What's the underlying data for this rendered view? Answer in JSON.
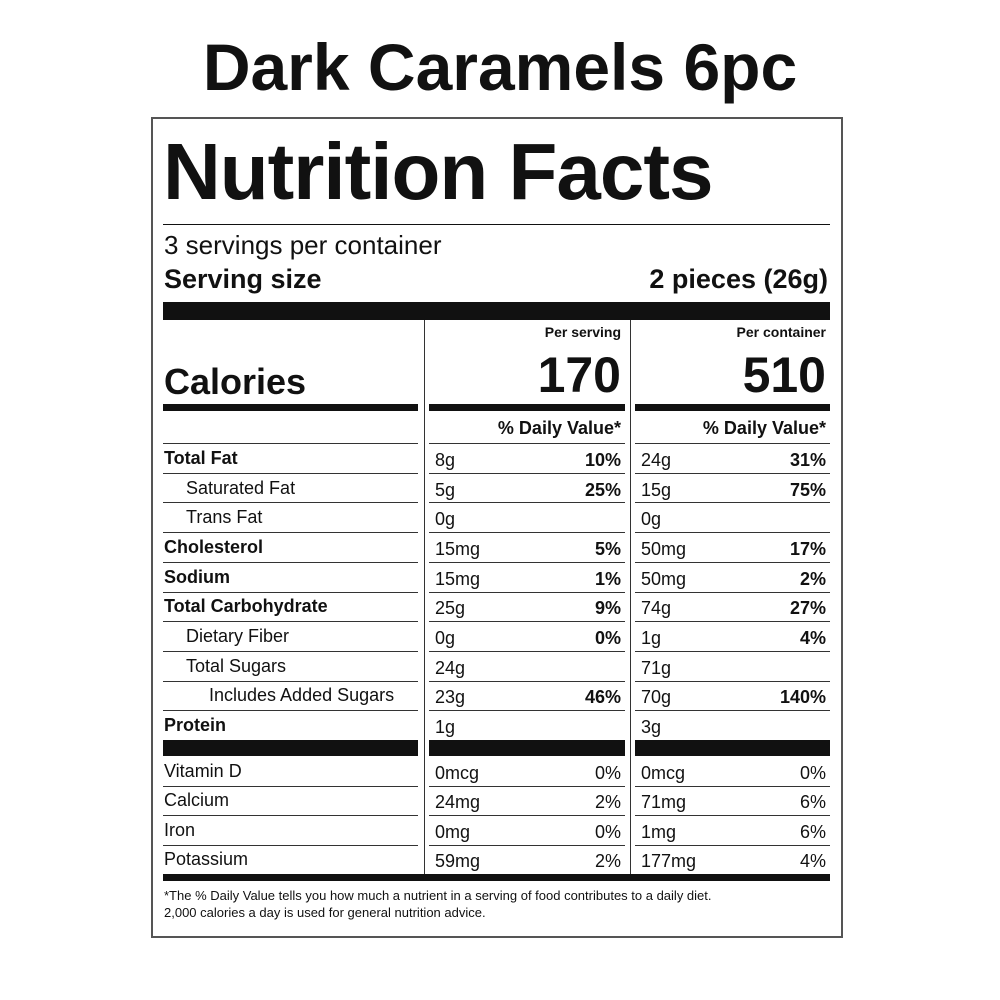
{
  "title": "Dark Caramels 6pc",
  "label": {
    "heading": "Nutrition Facts",
    "servings": "3 servings per container",
    "serving_size_label": "Serving size",
    "serving_size": "2 pieces (26g)",
    "calories_label": "Calories",
    "columns": [
      {
        "header": "Per serving",
        "calories": 170,
        "dv_header": "% Daily Value*"
      },
      {
        "header": "Per container",
        "calories": 510,
        "dv_header": "% Daily Value*"
      }
    ],
    "nutrients": [
      {
        "name": "Total Fat",
        "bold": true,
        "indent": 0,
        "values": [
          {
            "amount": "8g",
            "dv": "10%"
          },
          {
            "amount": "24g",
            "dv": "31%"
          }
        ]
      },
      {
        "name": "Saturated Fat",
        "bold": false,
        "indent": 1,
        "values": [
          {
            "amount": "5g",
            "dv": "25%"
          },
          {
            "amount": "15g",
            "dv": "75%"
          }
        ]
      },
      {
        "name": "Trans Fat",
        "bold": false,
        "indent": 1,
        "values": [
          {
            "amount": "0g"
          },
          {
            "amount": "0g"
          }
        ]
      },
      {
        "name": "Cholesterol",
        "bold": true,
        "indent": 0,
        "values": [
          {
            "amount": "15mg",
            "dv": "5%"
          },
          {
            "amount": "50mg",
            "dv": "17%"
          }
        ]
      },
      {
        "name": "Sodium",
        "bold": true,
        "indent": 0,
        "values": [
          {
            "amount": "15mg",
            "dv": "1%"
          },
          {
            "amount": "50mg",
            "dv": "2%"
          }
        ]
      },
      {
        "name": "Total Carbohydrate",
        "bold": true,
        "indent": 0,
        "values": [
          {
            "amount": "25g",
            "dv": "9%"
          },
          {
            "amount": "74g",
            "dv": "27%"
          }
        ]
      },
      {
        "name": "Dietary Fiber",
        "bold": false,
        "indent": 1,
        "values": [
          {
            "amount": "0g",
            "dv": "0%"
          },
          {
            "amount": "1g",
            "dv": "4%"
          }
        ]
      },
      {
        "name": "Total Sugars",
        "bold": false,
        "indent": 1,
        "values": [
          {
            "amount": "24g"
          },
          {
            "amount": "71g"
          }
        ]
      },
      {
        "name": "Includes Added Sugars",
        "bold": false,
        "indent": 2,
        "values": [
          {
            "amount": "23g",
            "dv": "46%"
          },
          {
            "amount": "70g",
            "dv": "140%"
          }
        ]
      },
      {
        "name": "Protein",
        "bold": true,
        "indent": 0,
        "values": [
          {
            "amount": "1g"
          },
          {
            "amount": "3g"
          }
        ]
      }
    ],
    "vitamins": [
      {
        "name": "Vitamin D",
        "values": [
          {
            "amount": "0mcg",
            "dv": "0%"
          },
          {
            "amount": "0mcg",
            "dv": "0%"
          }
        ]
      },
      {
        "name": "Calcium",
        "values": [
          {
            "amount": "24mg",
            "dv": "2%"
          },
          {
            "amount": "71mg",
            "dv": "6%"
          }
        ]
      },
      {
        "name": "Iron",
        "values": [
          {
            "amount": "0mg",
            "dv": "0%"
          },
          {
            "amount": "1mg",
            "dv": "6%"
          }
        ]
      },
      {
        "name": "Potassium",
        "values": [
          {
            "amount": "59mg",
            "dv": "2%"
          },
          {
            "amount": "177mg",
            "dv": "4%"
          }
        ]
      }
    ],
    "footnote": [
      "*The % Daily Value tells you how much a nutrient in a serving of food contributes to a daily diet.",
      "2,000 calories a day is used for general nutrition advice."
    ]
  }
}
